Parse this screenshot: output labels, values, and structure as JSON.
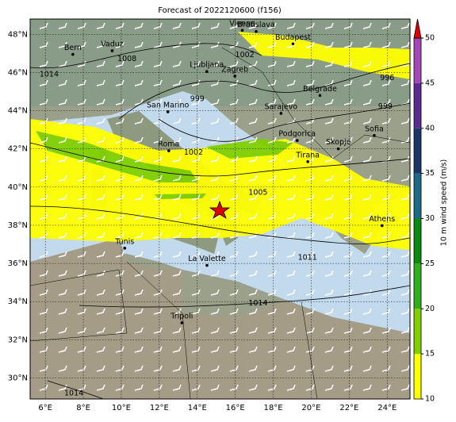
{
  "title": "Forecast of 2022120600 (f156)",
  "map": {
    "lonlim": [
      5.2,
      25.2
    ],
    "latlim": [
      28.9,
      48.8
    ],
    "lonticks": [
      {
        "value": 6,
        "label": "6°E"
      },
      {
        "value": 8,
        "label": "8°E"
      },
      {
        "value": 10,
        "label": "10°E"
      },
      {
        "value": 12,
        "label": "12°E"
      },
      {
        "value": 14,
        "label": "14°E"
      },
      {
        "value": 16,
        "label": "16°E"
      },
      {
        "value": 18,
        "label": "18°E"
      },
      {
        "value": 20,
        "label": "20°E"
      },
      {
        "value": 22,
        "label": "22°E"
      },
      {
        "value": 24,
        "label": "24°E"
      }
    ],
    "latticks": [
      {
        "value": 30,
        "label": "30°N"
      },
      {
        "value": 32,
        "label": "32°N"
      },
      {
        "value": 34,
        "label": "34°N"
      },
      {
        "value": 36,
        "label": "36°N"
      },
      {
        "value": 38,
        "label": "38°N"
      },
      {
        "value": 40,
        "label": "40°N"
      },
      {
        "value": 42,
        "label": "42°N"
      },
      {
        "value": 44,
        "label": "44°N"
      },
      {
        "value": 46,
        "label": "46°N"
      },
      {
        "value": 48,
        "label": "48°N"
      }
    ],
    "grid": true,
    "cities": [
      {
        "name": "Vienna",
        "lon": 16.37,
        "lat": 48.21
      },
      {
        "name": "Bratislava",
        "lon": 17.1,
        "lat": 48.15
      },
      {
        "name": "Budapest",
        "lon": 19.04,
        "lat": 47.5
      },
      {
        "name": "Bern",
        "lon": 7.45,
        "lat": 46.95
      },
      {
        "name": "Vaduz",
        "lon": 9.52,
        "lat": 47.14
      },
      {
        "name": "Ljubljana",
        "lon": 14.5,
        "lat": 46.05
      },
      {
        "name": "Zagreb",
        "lon": 15.98,
        "lat": 45.81
      },
      {
        "name": "Belgrade",
        "lon": 20.46,
        "lat": 44.8
      },
      {
        "name": "San Marino",
        "lon": 12.45,
        "lat": 43.94
      },
      {
        "name": "Sarajevo",
        "lon": 18.41,
        "lat": 43.86
      },
      {
        "name": "Roma",
        "lon": 12.5,
        "lat": 41.9
      },
      {
        "name": "Podgorica",
        "lon": 19.26,
        "lat": 42.44
      },
      {
        "name": "Sofia",
        "lon": 23.32,
        "lat": 42.7
      },
      {
        "name": "Skopje",
        "lon": 21.43,
        "lat": 42.0
      },
      {
        "name": "Tirana",
        "lon": 19.82,
        "lat": 41.33
      },
      {
        "name": "Athens",
        "lon": 23.73,
        "lat": 37.98
      },
      {
        "name": "Tunis",
        "lon": 10.18,
        "lat": 36.8
      },
      {
        "name": "La Valette",
        "lon": 14.51,
        "lat": 35.9
      },
      {
        "name": "Tripoli",
        "lon": 13.19,
        "lat": 32.89
      }
    ],
    "isobar_labels": [
      {
        "text": "1014",
        "lon": 6.2,
        "lat": 45.9
      },
      {
        "text": "1008",
        "lon": 10.3,
        "lat": 46.7
      },
      {
        "text": "1002",
        "lon": 16.5,
        "lat": 46.9
      },
      {
        "text": "999",
        "lon": 14.0,
        "lat": 44.6
      },
      {
        "text": "996",
        "lon": 24.0,
        "lat": 45.7
      },
      {
        "text": "999",
        "lon": 23.9,
        "lat": 44.2
      },
      {
        "text": "1002",
        "lon": 13.8,
        "lat": 41.8
      },
      {
        "text": "1005",
        "lon": 17.2,
        "lat": 39.7
      },
      {
        "text": "1011",
        "lon": 19.8,
        "lat": 36.3
      },
      {
        "text": "1014",
        "lon": 17.2,
        "lat": 33.9
      },
      {
        "text": "1014",
        "lon": 7.5,
        "lat": 29.2
      }
    ]
  },
  "colorbar": {
    "label": "10 m wind speed (m/s)",
    "lim": [
      10,
      50
    ],
    "ticks": [
      10,
      15,
      20,
      25,
      30,
      35,
      40,
      45,
      50
    ],
    "colors": [
      "#ffff00",
      "#80d000",
      "#2eb01c",
      "#0b8a12",
      "#1e6a86",
      "#1b3668",
      "#5a2c90",
      "#a348b8"
    ],
    "extend_color": "#e00000"
  }
}
